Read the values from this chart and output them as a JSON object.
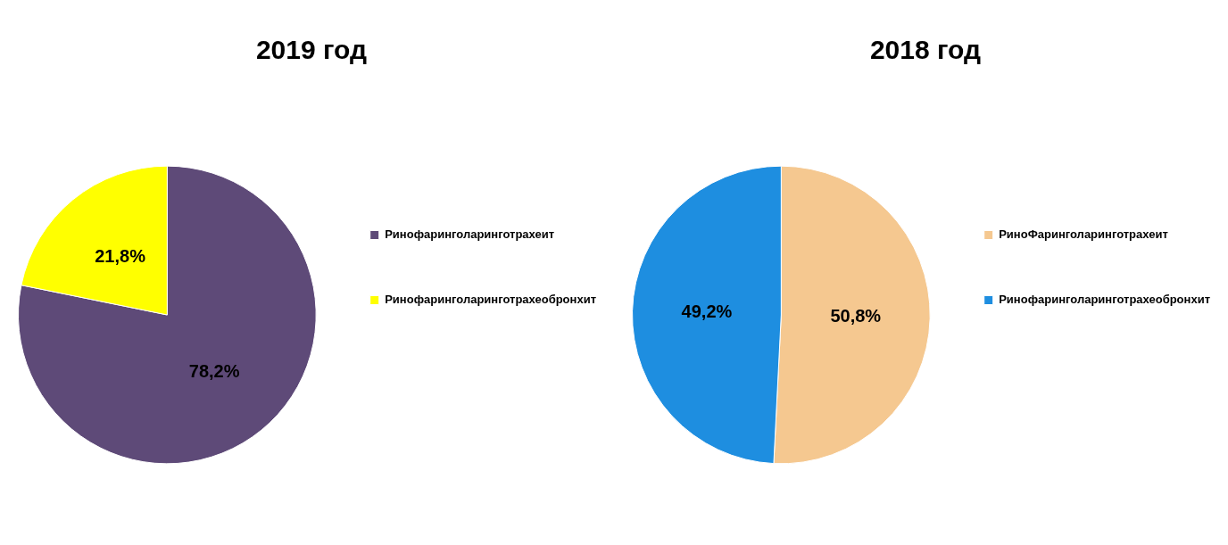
{
  "chart_data": [
    {
      "type": "pie",
      "title": "2019 год",
      "categories": [
        "Ринофаринголаринготрахеит",
        "Ринофаринголаринготрахеобронхит"
      ],
      "values": [
        78.2,
        21.8
      ],
      "colors": [
        "#5e4a78",
        "#ffff00"
      ],
      "value_labels": [
        "78,2%",
        "21,8%"
      ],
      "legend": "right"
    },
    {
      "type": "pie",
      "title": "2018 год",
      "categories": [
        "РиноФаринголаринготрахеит",
        "Ринофаринголаринготрахеобронхит"
      ],
      "values": [
        50.8,
        49.2
      ],
      "colors": [
        "#f5c890",
        "#1e8ee0"
      ],
      "value_labels": [
        "50,8%",
        "49,2%"
      ],
      "legend": "right"
    }
  ]
}
